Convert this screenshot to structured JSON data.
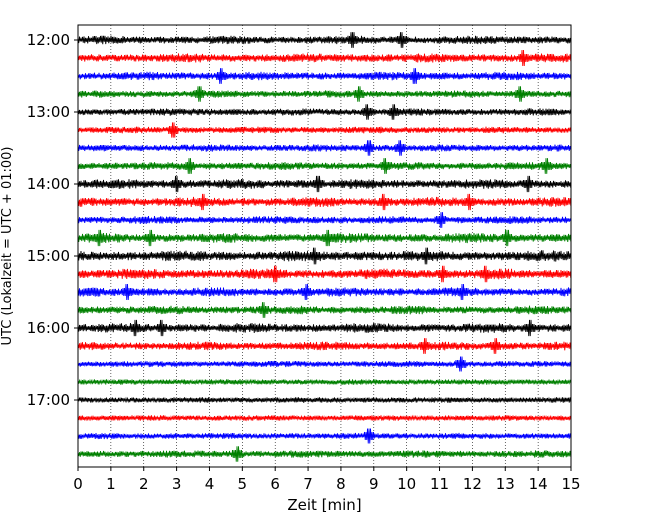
{
  "chart_data": {
    "type": "line",
    "title": "",
    "xlabel": "Zeit  [min]",
    "ylabel": "UTC (Lokalzeit = UTC + 01:00)",
    "xlim": [
      0,
      15
    ],
    "x_ticks": [
      "0",
      "1",
      "2",
      "3",
      "4",
      "5",
      "6",
      "7",
      "8",
      "9",
      "10",
      "11",
      "12",
      "13",
      "14",
      "15"
    ],
    "y_tick_labels": [
      "12:00",
      "13:00",
      "14:00",
      "15:00",
      "16:00",
      "17:00"
    ],
    "grid": "vertical dotted lines at each minute",
    "trace_colors": [
      "#000000",
      "#ff0000",
      "#0000ff",
      "#008000"
    ],
    "traces": [
      {
        "start": "12:00",
        "level": 0.45,
        "spikes": [
          8.35,
          9.85
        ]
      },
      {
        "start": "12:15",
        "level": 0.5,
        "spikes": [
          13.55
        ]
      },
      {
        "start": "12:30",
        "level": 0.45,
        "spikes": [
          4.35,
          10.25
        ]
      },
      {
        "start": "12:45",
        "level": 0.35,
        "spikes": [
          3.7,
          8.55,
          13.45
        ]
      },
      {
        "start": "13:00",
        "level": 0.35,
        "spikes": [
          8.8,
          9.6
        ]
      },
      {
        "start": "13:15",
        "level": 0.3,
        "spikes": [
          2.9
        ]
      },
      {
        "start": "13:30",
        "level": 0.35,
        "spikes": [
          8.85,
          9.8
        ]
      },
      {
        "start": "13:45",
        "level": 0.4,
        "spikes": [
          3.4,
          9.35,
          14.25
        ]
      },
      {
        "start": "14:00",
        "level": 0.55,
        "spikes": [
          3.0,
          7.3,
          13.7
        ]
      },
      {
        "start": "14:15",
        "level": 0.55,
        "spikes": [
          3.8,
          9.3,
          11.9
        ]
      },
      {
        "start": "14:30",
        "level": 0.4,
        "spikes": [
          11.05
        ]
      },
      {
        "start": "14:45",
        "level": 0.55,
        "spikes": [
          0.65,
          2.2,
          7.6,
          13.05
        ]
      },
      {
        "start": "15:00",
        "level": 0.65,
        "spikes": [
          7.2,
          10.6
        ]
      },
      {
        "start": "15:15",
        "level": 0.6,
        "spikes": [
          6.0,
          11.1,
          12.4
        ]
      },
      {
        "start": "15:30",
        "level": 0.5,
        "spikes": [
          1.5,
          6.95,
          11.7
        ]
      },
      {
        "start": "15:45",
        "level": 0.45,
        "spikes": [
          5.65
        ]
      },
      {
        "start": "16:00",
        "level": 0.55,
        "spikes": [
          1.75,
          2.55,
          13.75
        ]
      },
      {
        "start": "16:15",
        "level": 0.45,
        "spikes": [
          10.55,
          12.7
        ]
      },
      {
        "start": "16:30",
        "level": 0.25,
        "spikes": [
          11.65
        ]
      },
      {
        "start": "16:45",
        "level": 0.2,
        "spikes": []
      },
      {
        "start": "17:00",
        "level": 0.2,
        "spikes": []
      },
      {
        "start": "17:15",
        "level": 0.2,
        "spikes": []
      },
      {
        "start": "17:30",
        "level": 0.25,
        "spikes": [
          8.85
        ]
      },
      {
        "start": "17:45",
        "level": 0.35,
        "spikes": [
          4.85
        ]
      }
    ]
  }
}
